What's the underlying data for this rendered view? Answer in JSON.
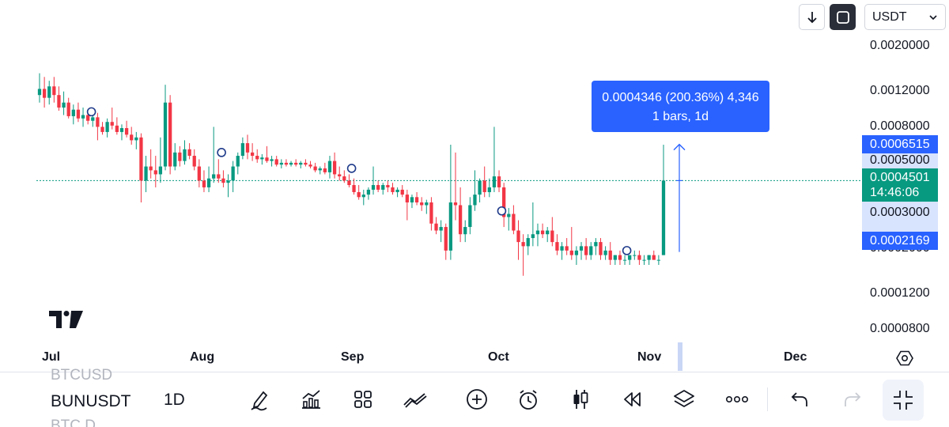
{
  "header": {
    "currency": "USDT"
  },
  "price_axis": {
    "labels": [
      "0.0020000",
      "0.0012000",
      "0.0008000",
      "0.0005000",
      "0.0003000",
      "0.0002000",
      "0.0001200",
      "0.0000800"
    ],
    "scale": "log"
  },
  "price_tags": {
    "range_high": "0.0006515",
    "range_low": "0.0002169",
    "current_price": "0.0004501",
    "countdown": "14:46:06"
  },
  "measure_tooltip": {
    "line1": "0.0004346 (200.36%) 4,346",
    "line2": "1 bars, 1d"
  },
  "time_axis": {
    "months": [
      "Jul",
      "Aug",
      "Sep",
      "Oct",
      "Nov",
      "Dec"
    ]
  },
  "bottom_bar": {
    "symbol_above": "BTCUSD",
    "symbol": "BUNUSDT",
    "symbol_below": "BTC.D",
    "interval": "1D"
  },
  "icons": {
    "toolbar": [
      "pencil-icon",
      "chart-indicators-icon",
      "grid-icon",
      "compare-icon",
      "plus-circle-icon",
      "alarm-icon",
      "candlestick-icon",
      "replay-icon",
      "layers-icon",
      "more-icon",
      "undo-icon",
      "redo-icon",
      "fullscreen-exit-icon"
    ]
  },
  "colors": {
    "up": "#089981",
    "down": "#f23645",
    "accent": "#2962ff",
    "current_line": "#089981"
  },
  "chart_data": {
    "type": "candlestick",
    "x_range": [
      "2024-06-30",
      "2024-12-12"
    ],
    "y_scale": "log",
    "ylim": [
      6.8e-05,
      0.00255
    ],
    "current_price": 0.0004501,
    "measure": {
      "from": 0.0002169,
      "to": 0.0006515,
      "change": 0.0004346,
      "change_pct": 200.36,
      "bars": 1
    },
    "candles": [
      [
        0.00108,
        0.00135,
        0.001,
        0.00115
      ],
      [
        0.00115,
        0.0013,
        0.00095,
        0.00105
      ],
      [
        0.00105,
        0.00125,
        0.00098,
        0.00118
      ],
      [
        0.00118,
        0.0013,
        0.001,
        0.00108
      ],
      [
        0.00108,
        0.00118,
        0.00092,
        0.00095
      ],
      [
        0.00095,
        0.00112,
        0.00088,
        0.001
      ],
      [
        0.001,
        0.00105,
        0.00085,
        0.00087
      ],
      [
        0.00087,
        0.00098,
        0.0008,
        0.00093
      ],
      [
        0.00093,
        0.001,
        0.00082,
        0.00085
      ],
      [
        0.00085,
        0.00095,
        0.00078,
        0.00088
      ],
      [
        0.00088,
        0.00092,
        0.0008,
        0.00083
      ],
      [
        0.00083,
        0.0009,
        0.00078,
        0.00086
      ],
      [
        0.00086,
        0.0009,
        0.00068,
        0.00078
      ],
      [
        0.00078,
        0.00082,
        0.00072,
        0.00074
      ],
      [
        0.00074,
        0.00085,
        0.0007,
        0.00082
      ],
      [
        0.00082,
        0.00095,
        0.00076,
        0.00079
      ],
      [
        0.00079,
        0.00086,
        0.00072,
        0.00074
      ],
      [
        0.00074,
        0.0008,
        0.00068,
        0.00077
      ],
      [
        0.00077,
        0.00083,
        0.0007,
        0.00072
      ],
      [
        0.00072,
        0.00078,
        0.00065,
        0.00068
      ],
      [
        0.00068,
        0.00074,
        0.00062,
        0.0007
      ],
      [
        0.0007,
        0.00073,
        0.00036,
        0.00045
      ],
      [
        0.00045,
        0.00058,
        0.0004,
        0.00052
      ],
      [
        0.00052,
        0.00062,
        0.00046,
        0.0005
      ],
      [
        0.0005,
        0.00058,
        0.00042,
        0.00048
      ],
      [
        0.00048,
        0.0007,
        0.00044,
        0.00052
      ],
      [
        0.00052,
        0.0012,
        0.0005,
        0.001
      ],
      [
        0.001,
        0.00108,
        0.00048,
        0.00052
      ],
      [
        0.00052,
        0.00066,
        0.0005,
        0.0006
      ],
      [
        0.0006,
        0.00064,
        0.00052,
        0.00055
      ],
      [
        0.00055,
        0.00068,
        0.00053,
        0.00062
      ],
      [
        0.00062,
        0.00066,
        0.00056,
        0.00058
      ],
      [
        0.00058,
        0.00062,
        0.0005,
        0.00052
      ],
      [
        0.00052,
        0.00056,
        0.00042,
        0.00045
      ],
      [
        0.00045,
        0.0005,
        0.0004,
        0.00042
      ],
      [
        0.00042,
        0.00052,
        0.0004,
        0.00046
      ],
      [
        0.00046,
        0.00078,
        0.00044,
        0.00048
      ],
      [
        0.00048,
        0.00056,
        0.00044,
        0.00046
      ],
      [
        0.00046,
        0.0005,
        0.00042,
        0.00044
      ],
      [
        0.00044,
        0.00048,
        0.00038,
        0.00045
      ],
      [
        0.00045,
        0.00055,
        0.0004,
        0.00052
      ],
      [
        0.00052,
        0.0006,
        0.00048,
        0.00058
      ],
      [
        0.00058,
        0.0007,
        0.00056,
        0.00066
      ],
      [
        0.00066,
        0.00072,
        0.00056,
        0.0006
      ],
      [
        0.0006,
        0.00066,
        0.00055,
        0.00058
      ],
      [
        0.00058,
        0.00062,
        0.00054,
        0.00056
      ],
      [
        0.00056,
        0.00059,
        0.00053,
        0.00057
      ],
      [
        0.00057,
        0.00064,
        0.00054,
        0.00055
      ],
      [
        0.00055,
        0.00058,
        0.00052,
        0.00056
      ],
      [
        0.00056,
        0.00058,
        0.00052,
        0.00053
      ],
      [
        0.00053,
        0.00056,
        0.00051,
        0.00054
      ],
      [
        0.00054,
        0.00056,
        0.00052,
        0.00053
      ],
      [
        0.00053,
        0.00055,
        0.00052,
        0.00054
      ],
      [
        0.00054,
        0.00056,
        0.00052,
        0.00053
      ],
      [
        0.00053,
        0.00055,
        0.00051,
        0.00054
      ],
      [
        0.00054,
        0.00056,
        0.00052,
        0.00053
      ],
      [
        0.00053,
        0.00055,
        0.00051,
        0.00052
      ],
      [
        0.00052,
        0.00054,
        0.00049,
        0.0005
      ],
      [
        0.0005,
        0.00052,
        0.00048,
        0.00051
      ],
      [
        0.00051,
        0.00054,
        0.00048,
        0.00049
      ],
      [
        0.00049,
        0.00058,
        0.00046,
        0.00055
      ],
      [
        0.00055,
        0.0006,
        0.00046,
        0.00048
      ],
      [
        0.00048,
        0.00052,
        0.00045,
        0.00047
      ],
      [
        0.00047,
        0.0005,
        0.00044,
        0.00045
      ],
      [
        0.00045,
        0.00048,
        0.00042,
        0.00043
      ],
      [
        0.00043,
        0.00046,
        0.00039,
        0.0004
      ],
      [
        0.0004,
        0.00043,
        0.00037,
        0.00038
      ],
      [
        0.00038,
        0.00041,
        0.00035,
        0.00039
      ],
      [
        0.00039,
        0.00042,
        0.00037,
        0.00041
      ],
      [
        0.00041,
        0.00052,
        0.00039,
        0.00043
      ],
      [
        0.00043,
        0.00045,
        0.0004,
        0.00041
      ],
      [
        0.00041,
        0.00044,
        0.00039,
        0.00043
      ],
      [
        0.00043,
        0.00045,
        0.0004,
        0.00042
      ],
      [
        0.00042,
        0.00044,
        0.00039,
        0.0004
      ],
      [
        0.0004,
        0.00042,
        0.00038,
        0.00041
      ],
      [
        0.00041,
        0.00043,
        0.00038,
        0.00039
      ],
      [
        0.00039,
        0.00041,
        0.0003,
        0.00036
      ],
      [
        0.00036,
        0.00039,
        0.00034,
        0.00038
      ],
      [
        0.00038,
        0.0004,
        0.00035,
        0.00036
      ],
      [
        0.00036,
        0.00038,
        0.00033,
        0.00035
      ],
      [
        0.00035,
        0.00037,
        0.00032,
        0.00036
      ],
      [
        0.00036,
        0.00038,
        0.00027,
        0.00029
      ],
      [
        0.00029,
        0.00031,
        0.00026,
        0.00027
      ],
      [
        0.00027,
        0.0003,
        0.00024,
        0.00028
      ],
      [
        0.00028,
        0.00029,
        0.0002,
        0.00022
      ],
      [
        0.00022,
        0.00065,
        0.0002,
        0.00036
      ],
      [
        0.00036,
        0.0006,
        0.0003,
        0.00035
      ],
      [
        0.00035,
        0.00042,
        0.00024,
        0.00026
      ],
      [
        0.00026,
        0.0003,
        0.00024,
        0.00028
      ],
      [
        0.00028,
        0.00038,
        0.00026,
        0.00035
      ],
      [
        0.00035,
        0.0005,
        0.00033,
        0.00039
      ],
      [
        0.00039,
        0.00046,
        0.00036,
        0.00045
      ],
      [
        0.00045,
        0.00052,
        0.00038,
        0.0004
      ],
      [
        0.0004,
        0.00046,
        0.00038,
        0.00042
      ],
      [
        0.00042,
        0.00078,
        0.0004,
        0.00047
      ],
      [
        0.00047,
        0.0005,
        0.0004,
        0.00042
      ],
      [
        0.00042,
        0.00044,
        0.00028,
        0.00031
      ],
      [
        0.00031,
        0.00034,
        0.00027,
        0.00032
      ],
      [
        0.00032,
        0.00035,
        0.00026,
        0.00027
      ],
      [
        0.00027,
        0.0003,
        0.0002,
        0.00024
      ],
      [
        0.00024,
        0.00026,
        0.00017,
        0.00023
      ],
      [
        0.00023,
        0.00026,
        0.00021,
        0.00025
      ],
      [
        0.00025,
        0.00036,
        0.00023,
        0.00026
      ],
      [
        0.00026,
        0.00029,
        0.00023,
        0.00027
      ],
      [
        0.00027,
        0.00029,
        0.00025,
        0.00026
      ],
      [
        0.00026,
        0.00028,
        0.00024,
        0.00027
      ],
      [
        0.00027,
        0.00031,
        0.00023,
        0.00024
      ],
      [
        0.00024,
        0.00026,
        0.00021,
        0.00022
      ],
      [
        0.00022,
        0.00024,
        0.0002,
        0.00023
      ],
      [
        0.00023,
        0.00025,
        0.00021,
        0.00022
      ],
      [
        0.00022,
        0.00028,
        0.0002,
        0.00021
      ],
      [
        0.00021,
        0.00023,
        0.00019,
        0.00022
      ],
      [
        0.00022,
        0.00024,
        0.0002,
        0.00023
      ],
      [
        0.00023,
        0.00025,
        0.0002,
        0.00021
      ],
      [
        0.00021,
        0.00024,
        0.0002,
        0.00023
      ],
      [
        0.00023,
        0.00025,
        0.00021,
        0.00024
      ],
      [
        0.00024,
        0.00025,
        0.0002,
        0.00021
      ],
      [
        0.00021,
        0.00023,
        0.0002,
        0.00022
      ],
      [
        0.00022,
        0.00024,
        0.00019,
        0.0002
      ],
      [
        0.0002,
        0.00021,
        0.00019,
        0.00021
      ],
      [
        0.00021,
        0.00022,
        0.00019,
        0.0002
      ],
      [
        0.0002,
        0.00021,
        0.00019,
        0.0002
      ],
      [
        0.0002,
        0.00021,
        0.00019,
        0.00021
      ],
      [
        0.00021,
        0.00022,
        0.0002,
        0.00021
      ],
      [
        0.00021,
        0.00022,
        0.00019,
        0.0002
      ],
      [
        0.0002,
        0.00021,
        0.00019,
        0.0002
      ],
      [
        0.0002,
        0.00021,
        0.00019,
        0.00021
      ],
      [
        0.00021,
        0.00022,
        0.0002,
        0.0002
      ],
      [
        0.0002,
        0.00021,
        0.00019,
        0.0002
      ],
      [
        0.00021,
        0.00065,
        0.00021,
        0.00045
      ]
    ],
    "event_markers": [
      {
        "date": "2024-07-11",
        "price": 0.00091
      },
      {
        "date": "2024-08-06",
        "price": 0.0006
      },
      {
        "date": "2024-09-01",
        "price": 0.00051
      },
      {
        "date": "2024-10-01",
        "price": 0.00033
      },
      {
        "date": "2024-10-26",
        "price": 0.00022
      }
    ]
  }
}
